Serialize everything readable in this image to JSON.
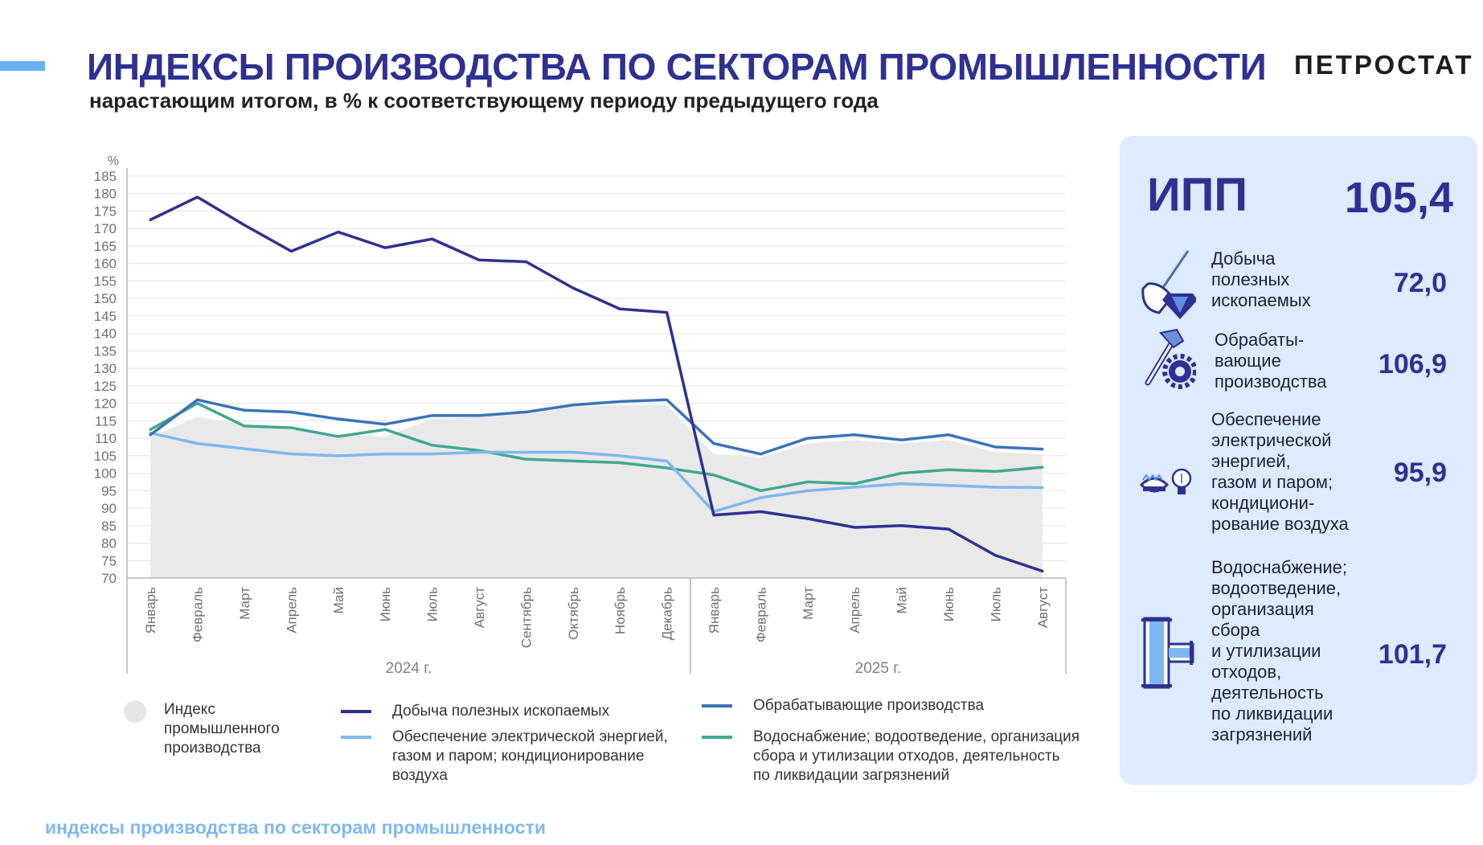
{
  "header": {
    "title": "ИНДЕКСЫ ПРОИЗВОДСТВА ПО СЕКТОРАМ ПРОМЫШЛЕННОСТИ",
    "subtitle": "нарастающим итогом, в % к соответствующему периоду предыдущего года",
    "logo": "ПЕТРОСТАТ"
  },
  "footer": "индексы производства по секторам промышленности",
  "panel": {
    "ipp_label": "ИПП",
    "ipp_value": "105,4",
    "sectors": [
      {
        "label": "Добыча\nполезных\nископаемых",
        "value": "72,0",
        "icon": "shovel-diamond-icon"
      },
      {
        "label": "Обрабаты-\nвающие\nпроизводства",
        "value": "106,9",
        "icon": "hammer-gear-icon"
      },
      {
        "label": "Обеспечение\nэлектрической\nэнергией,\nгазом и паром;\nкондициони-\nрование воздуха",
        "value": "95,9",
        "icon": "gas-burner-bulb-icon"
      },
      {
        "label": "Водоснабжение;\nводоотведение,\nорганизация\nсбора\nи утилизации\nотходов,\nдеятельность\nпо ликвидации\nзагрязнений",
        "value": "101,7",
        "icon": "water-pipe-icon"
      }
    ]
  },
  "legend": {
    "area": "Индекс\nпромышленного\nпроизводства",
    "mining": "Добыча полезных ископаемых",
    "manufacturing": "Обрабатывающие производства",
    "energy": "Обеспечение электрической энергией,\nгазом и паром; кондиционирование\nвоздуха",
    "water": "Водоснабжение; водоотведение, организация\nсбора и утилизации отходов, деятельность\nпо ликвидации загрязнений"
  },
  "chart_data": {
    "type": "line",
    "ylabel": "%",
    "ylim": [
      70,
      185
    ],
    "yticks": [
      70,
      75,
      80,
      85,
      90,
      95,
      100,
      105,
      110,
      115,
      120,
      125,
      130,
      135,
      140,
      145,
      150,
      155,
      160,
      165,
      170,
      175,
      180,
      185
    ],
    "grid": true,
    "categories": [
      "Январь",
      "Февраль",
      "Март",
      "Апрель",
      "Май",
      "Июнь",
      "Июль",
      "Август",
      "Сентябрь",
      "Октябрь",
      "Ноябрь",
      "Декабрь",
      "Январь",
      "Февраль",
      "Март",
      "Апрель",
      "Май",
      "Июнь",
      "Июль",
      "Август"
    ],
    "groups": [
      {
        "label": "2024 г.",
        "count": 12
      },
      {
        "label": "2025 г.",
        "count": 8
      }
    ],
    "area": {
      "name": "Индекс промышленного производства",
      "color": "#e9e9e9",
      "values": [
        110.5,
        116,
        114,
        112.5,
        111,
        110.5,
        115.5,
        116,
        117,
        119,
        119.5,
        119.5,
        105.5,
        104.5,
        108.5,
        109.5,
        108.5,
        109.5,
        106,
        105.4
      ]
    },
    "series": [
      {
        "key": "mining",
        "name": "Добыча полезных ископаемых",
        "color": "#2e3192",
        "values": [
          172.5,
          179,
          171,
          163.5,
          169,
          164.5,
          167,
          161,
          160.5,
          153,
          147,
          146,
          88,
          89,
          87,
          84.5,
          85,
          84,
          76.5,
          72.0
        ]
      },
      {
        "key": "manufacturing",
        "name": "Обрабатывающие производства",
        "color": "#3b73b9",
        "values": [
          111,
          121,
          118,
          117.5,
          115.5,
          114,
          116.5,
          116.5,
          117.5,
          119.5,
          120.5,
          121,
          108.5,
          105.5,
          110,
          111,
          109.5,
          111,
          107.5,
          106.9
        ]
      },
      {
        "key": "energy",
        "name": "Обеспечение электрической энергией, газом и паром; кондиционирование воздуха",
        "color": "#7fb8f0",
        "values": [
          111.5,
          108.5,
          107,
          105.5,
          105,
          105.5,
          105.5,
          106,
          106,
          106,
          105,
          103.5,
          89,
          93,
          95,
          96,
          97,
          96.5,
          96,
          95.9
        ]
      },
      {
        "key": "water",
        "name": "Водоснабжение; водоотведение, организация сбора и утилизации отходов, деятельность по ликвидации загрязнений",
        "color": "#41a891",
        "values": [
          112.5,
          120,
          113.5,
          113,
          110.5,
          112.5,
          108,
          106.5,
          104,
          103.5,
          103,
          101.5,
          99.5,
          95,
          97.5,
          97,
          100,
          101,
          100.5,
          101.7
        ]
      }
    ]
  }
}
